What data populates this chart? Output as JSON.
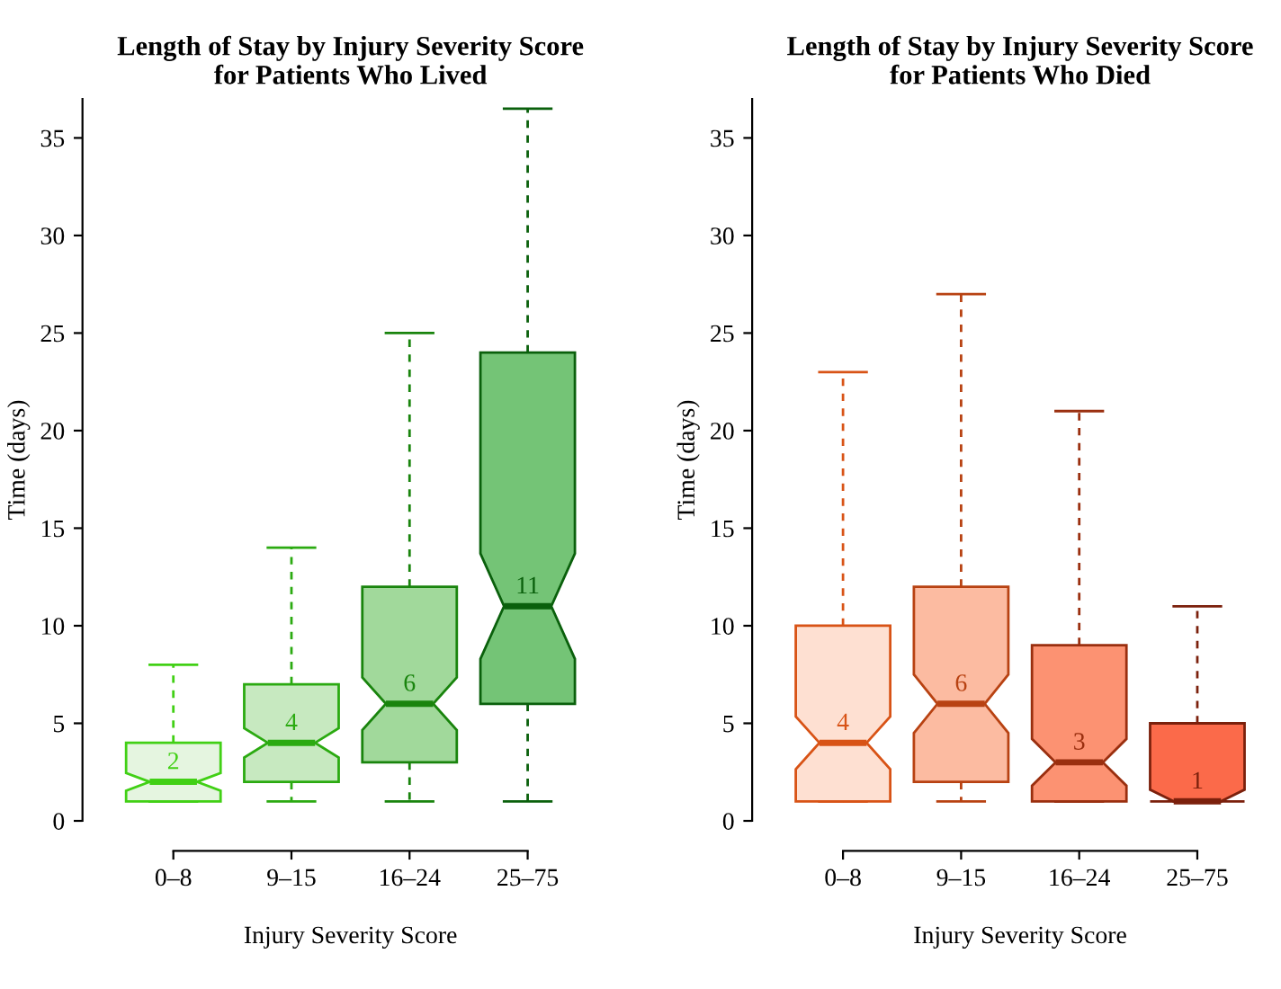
{
  "chart_data": [
    {
      "type": "box",
      "title": "Length of Stay by Injury Severity Score\nfor Patients Who Lived",
      "xlabel": "Injury Severity Score",
      "ylabel": "Time (days)",
      "categories": [
        "0–8",
        "9–15",
        "16–24",
        "25–75"
      ],
      "ylim": [
        0,
        37
      ],
      "yticks": [
        0,
        5,
        10,
        15,
        20,
        25,
        30,
        35
      ],
      "value_labels": [
        "2",
        "4",
        "6",
        "11"
      ],
      "grid": false,
      "legend": false,
      "colors": [
        "#e5f5e0",
        "#c7e9c0",
        "#a1d99b",
        "#74c476"
      ],
      "boxes": [
        {
          "low": 1,
          "q1": 1,
          "median": 2,
          "q3": 4,
          "high": 8
        },
        {
          "low": 1,
          "q1": 2,
          "median": 4,
          "q3": 7,
          "high": 14
        },
        {
          "low": 1,
          "q1": 3,
          "median": 6,
          "q3": 12,
          "high": 25
        },
        {
          "low": 1,
          "q1": 6,
          "median": 11,
          "q3": 24,
          "high": 36.5
        }
      ]
    },
    {
      "type": "box",
      "title": "Length of Stay by Injury Severity Score\nfor Patients Who Died",
      "xlabel": "Injury Severity Score",
      "ylabel": "Time (days)",
      "categories": [
        "0–8",
        "9–15",
        "16–24",
        "25–75"
      ],
      "ylim": [
        0,
        37
      ],
      "yticks": [
        0,
        5,
        10,
        15,
        20,
        25,
        30,
        35
      ],
      "value_labels": [
        "4",
        "6",
        "3",
        "1"
      ],
      "grid": false,
      "legend": false,
      "colors": [
        "#fee0d2",
        "#fcbba1",
        "#fc9272",
        "#fb6a4a"
      ],
      "boxes": [
        {
          "low": 1,
          "q1": 1,
          "median": 4,
          "q3": 10,
          "high": 23
        },
        {
          "low": 1,
          "q1": 2,
          "median": 6,
          "q3": 12,
          "high": 27
        },
        {
          "low": 1,
          "q1": 1,
          "median": 3,
          "q3": 9,
          "high": 21
        },
        {
          "low": 1,
          "q1": 1,
          "median": 1,
          "q3": 5,
          "high": 11
        }
      ]
    }
  ]
}
